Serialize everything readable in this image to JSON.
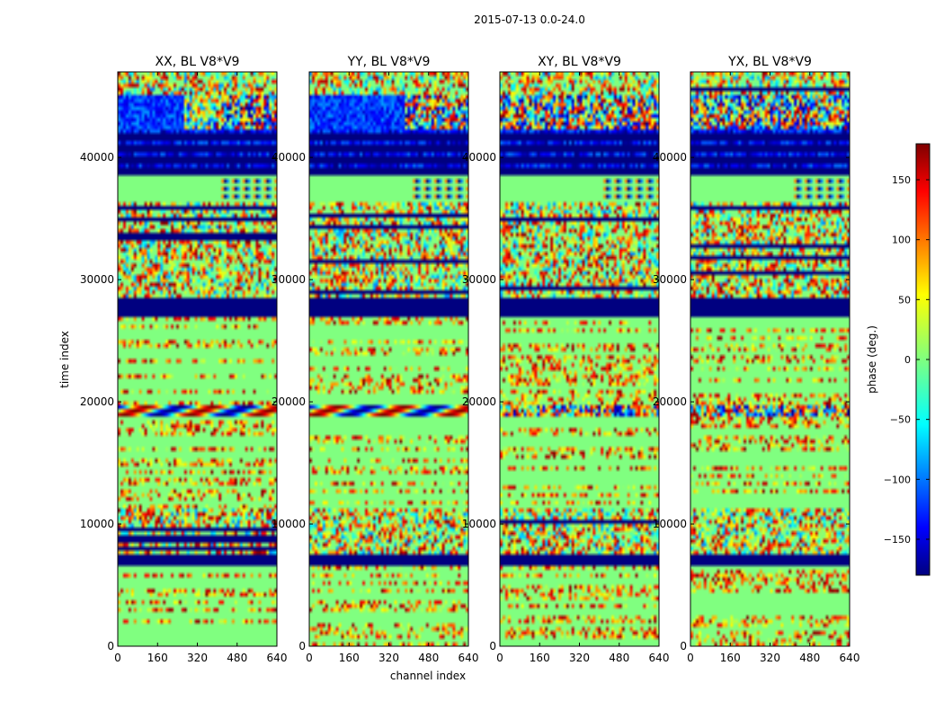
{
  "chart_data": {
    "type": "heatmap",
    "suptitle": "2015-07-13 0.0-24.0",
    "xlabel": "channel index",
    "ylabel": "time index",
    "xlim": [
      0,
      640
    ],
    "ylim": [
      0,
      47000
    ],
    "xticks": [
      "0",
      "160",
      "320",
      "480",
      "640"
    ],
    "yticks": [
      "0",
      "10000",
      "20000",
      "30000",
      "40000"
    ],
    "colorscale": "jet",
    "panels": [
      {
        "title": "XX, BL V8*V9",
        "pol": "XX"
      },
      {
        "title": "YY, BL V8*V9",
        "pol": "YY"
      },
      {
        "title": "XY, BL V8*V9",
        "pol": "XY"
      },
      {
        "title": "YX, BL V8*V9",
        "pol": "YX"
      }
    ],
    "colorbar": {
      "label": "phase (deg.)",
      "vmin": -180,
      "vmax": 180,
      "ticks": [
        "150",
        "100",
        "50",
        "0",
        "−50",
        "−100",
        "−150"
      ],
      "tick_values": [
        150,
        100,
        50,
        0,
        -50,
        -100,
        -150
      ]
    },
    "bands": [
      {
        "from": 0,
        "to": 6500,
        "kind": "noisy_sparse"
      },
      {
        "from": 6500,
        "to": 7500,
        "kind": "flagged"
      },
      {
        "from": 7500,
        "to": 11200,
        "kind": "noisy_dense"
      },
      {
        "from": 11200,
        "to": 20300,
        "kind": "noisy_sparse"
      },
      {
        "from": 18800,
        "to": 19800,
        "kind": "fringe"
      },
      {
        "from": 20300,
        "to": 26800,
        "kind": "noisy_sparse"
      },
      {
        "from": 26800,
        "to": 28600,
        "kind": "flagged"
      },
      {
        "from": 28600,
        "to": 36300,
        "kind": "noisy_dense"
      },
      {
        "from": 36300,
        "to": 38600,
        "kind": "zero"
      },
      {
        "from": 38600,
        "to": 42200,
        "kind": "flagged_striped"
      },
      {
        "from": 42200,
        "to": 45200,
        "kind": "blue_patch"
      },
      {
        "from": 45200,
        "to": 47000,
        "kind": "noisy_dense"
      }
    ]
  }
}
